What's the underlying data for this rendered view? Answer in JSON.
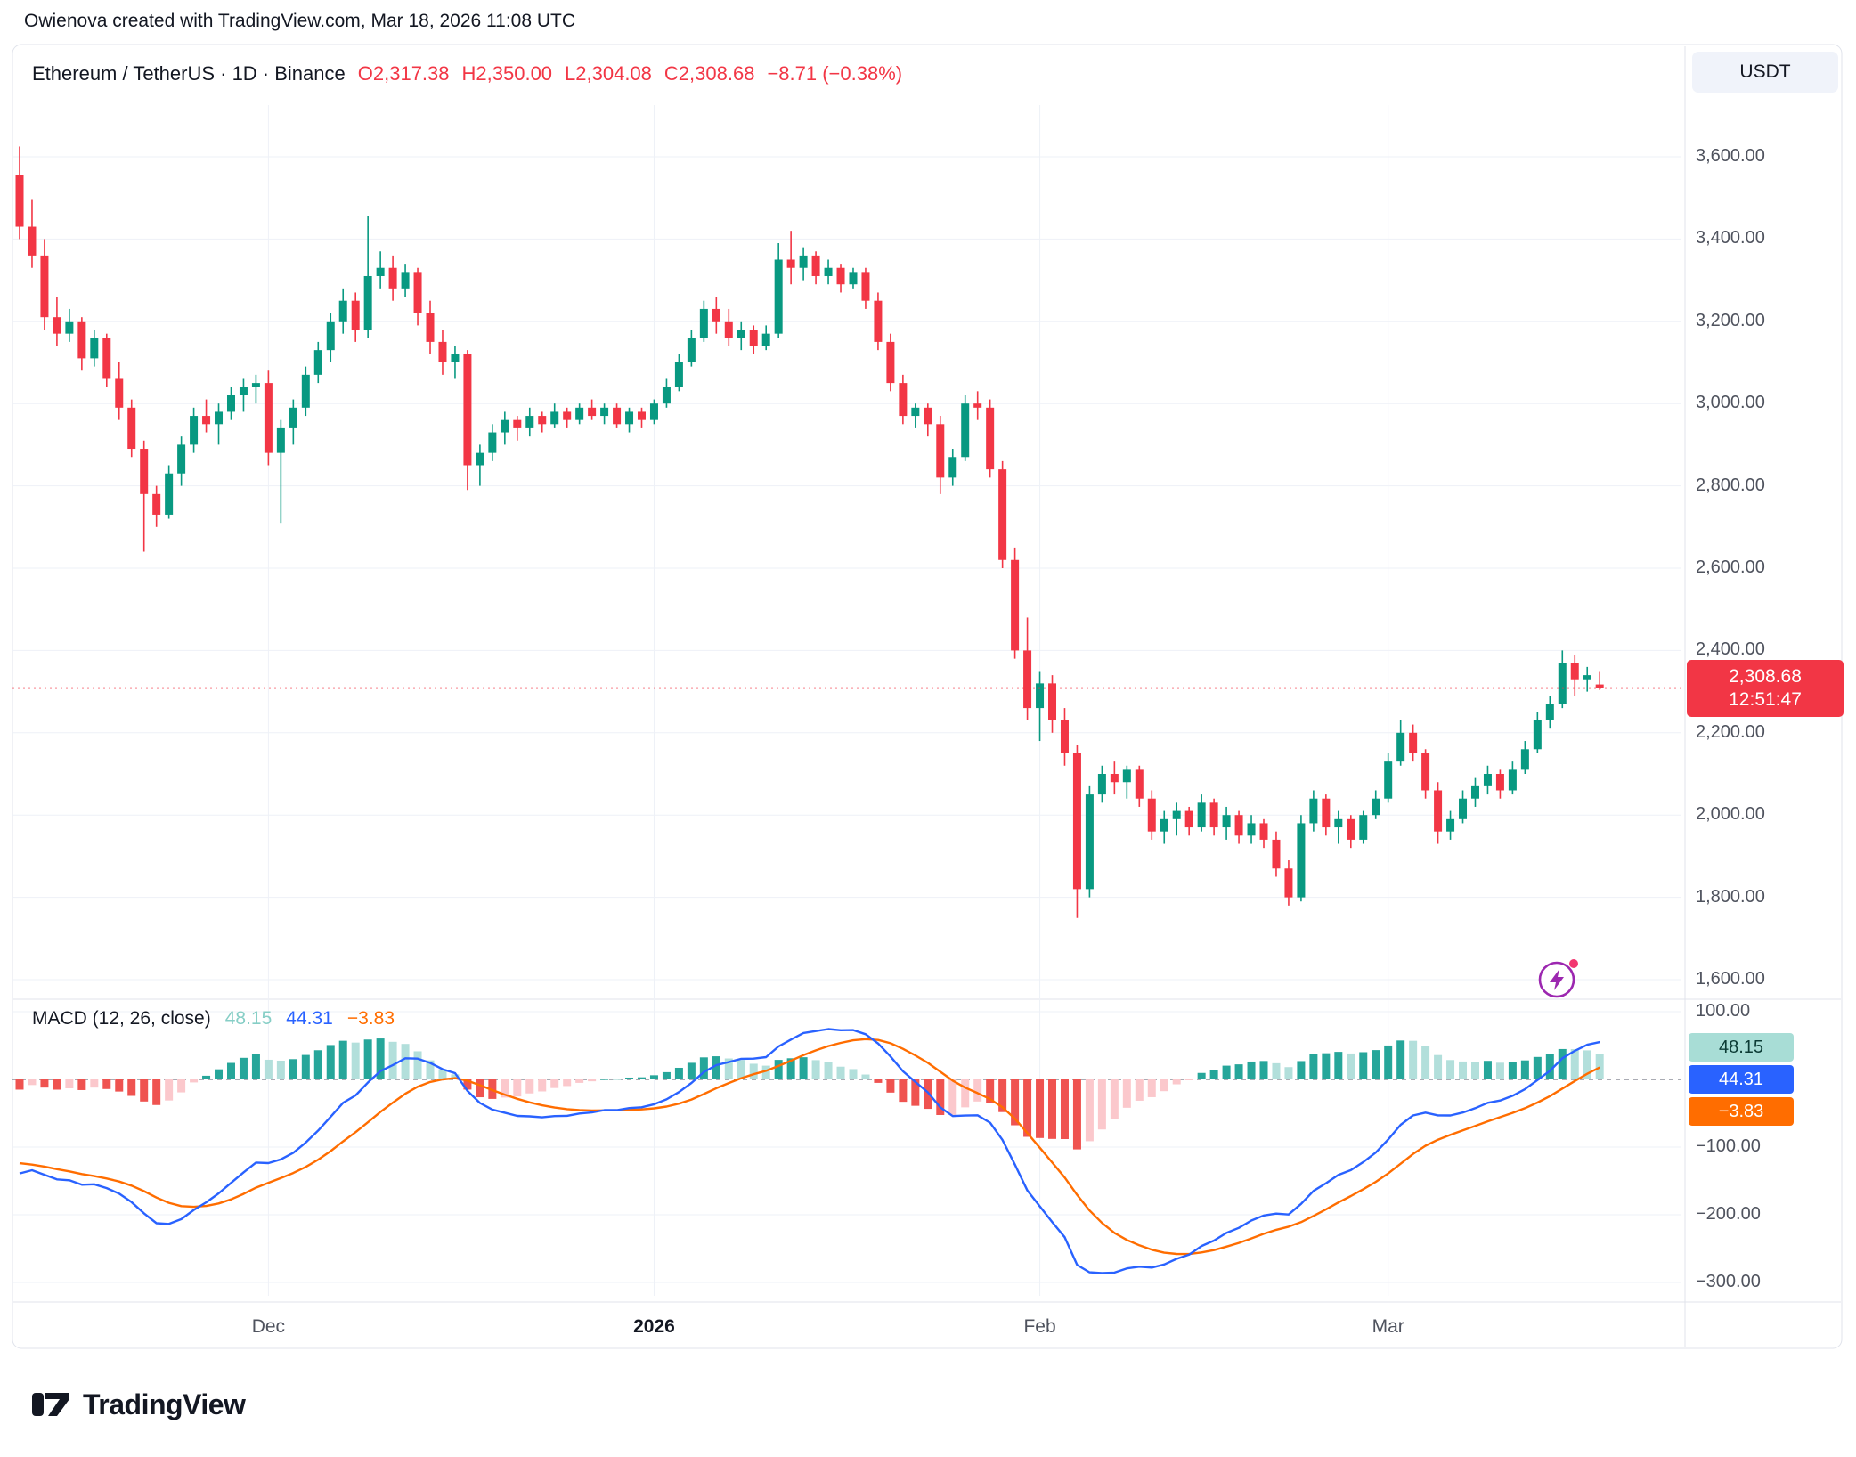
{
  "attribution": "Owienova created with TradingView.com, Mar 18, 2026 11:08 UTC",
  "header": {
    "instrument": "Ethereum / TetherUS · 1D · Binance",
    "o": "O2,317.38",
    "h": "H2,350.00",
    "l": "L2,304.08",
    "c": "C2,308.68",
    "change": "−8.71 (−0.38%)"
  },
  "price_scale": {
    "currency_button": "USDT",
    "labels": [
      "3,600.00",
      "3,400.00",
      "3,200.00",
      "3,000.00",
      "2,800.00",
      "2,600.00",
      "2,400.00",
      "2,200.00",
      "2,000.00",
      "1,800.00",
      "1,600.00"
    ],
    "current_price": {
      "value": "2,308.68",
      "countdown": "12:51:47"
    }
  },
  "macd_panel": {
    "title": "MACD (12, 26, close)",
    "hist_value": "48.15",
    "macd_value": "44.31",
    "signal_value": "−3.83",
    "axis_labels": [
      "100.00",
      "−100.00",
      "−200.00",
      "−300.00"
    ]
  },
  "footer": {
    "logo_text": "TradingView"
  },
  "colors": {
    "up": "#089981",
    "down": "#f23645",
    "macd_line": "#2962ff",
    "signal_line": "#ff6d00",
    "grow_above": "#26a69a",
    "fall_above": "#b2dfdb",
    "grow_below": "#fbc8cc",
    "fall_below": "#ef5350",
    "grid": "#eef1f7",
    "separator": "#e0e3eb",
    "zero_line": "#787b86",
    "price_line": "#f23645"
  },
  "chart_data": {
    "type": "candlestick",
    "title": "Ethereum / TetherUS, 1D, Binance",
    "last_ohlc": {
      "open": 2317.38,
      "high": 2350.0,
      "low": 2304.08,
      "close": 2308.68,
      "change": -8.71,
      "change_pct": -0.38
    },
    "current_price": 2308.68,
    "price_axis_ticks": [
      3600,
      3400,
      3200,
      3000,
      2800,
      2600,
      2400,
      2200,
      2000,
      1800,
      1600
    ],
    "ylim": [
      1560,
      3700
    ],
    "time_ticks": [
      {
        "label": "Dec",
        "index": 20,
        "bold": false
      },
      {
        "label": "2026",
        "index": 51,
        "bold": true
      },
      {
        "label": "Feb",
        "index": 82,
        "bold": false
      },
      {
        "label": "Mar",
        "index": 110,
        "bold": false
      }
    ],
    "candles": [
      [
        3555,
        3625,
        3400,
        3430
      ],
      [
        3430,
        3495,
        3330,
        3360
      ],
      [
        3360,
        3400,
        3180,
        3210
      ],
      [
        3210,
        3260,
        3140,
        3170
      ],
      [
        3170,
        3230,
        3150,
        3200
      ],
      [
        3200,
        3210,
        3080,
        3110
      ],
      [
        3110,
        3180,
        3090,
        3160
      ],
      [
        3160,
        3170,
        3040,
        3060
      ],
      [
        3060,
        3100,
        2960,
        2990
      ],
      [
        2990,
        3010,
        2870,
        2890
      ],
      [
        2890,
        2910,
        2640,
        2780
      ],
      [
        2780,
        2800,
        2700,
        2730
      ],
      [
        2730,
        2850,
        2720,
        2830
      ],
      [
        2830,
        2920,
        2800,
        2900
      ],
      [
        2900,
        2990,
        2880,
        2970
      ],
      [
        2970,
        3010,
        2930,
        2950
      ],
      [
        2950,
        3000,
        2900,
        2980
      ],
      [
        2980,
        3040,
        2960,
        3020
      ],
      [
        3020,
        3060,
        2980,
        3040
      ],
      [
        3040,
        3070,
        3000,
        3050
      ],
      [
        3050,
        3080,
        2850,
        2880
      ],
      [
        2880,
        2960,
        2710,
        2940
      ],
      [
        2940,
        3010,
        2900,
        2990
      ],
      [
        2990,
        3090,
        2970,
        3070
      ],
      [
        3070,
        3150,
        3050,
        3130
      ],
      [
        3130,
        3220,
        3100,
        3200
      ],
      [
        3200,
        3280,
        3170,
        3250
      ],
      [
        3250,
        3270,
        3150,
        3180
      ],
      [
        3180,
        3455,
        3160,
        3310
      ],
      [
        3310,
        3370,
        3280,
        3330
      ],
      [
        3330,
        3360,
        3250,
        3280
      ],
      [
        3280,
        3340,
        3260,
        3320
      ],
      [
        3320,
        3330,
        3190,
        3220
      ],
      [
        3220,
        3250,
        3120,
        3150
      ],
      [
        3150,
        3180,
        3070,
        3100
      ],
      [
        3100,
        3140,
        3060,
        3120
      ],
      [
        3120,
        3130,
        2790,
        2850
      ],
      [
        2850,
        2900,
        2800,
        2880
      ],
      [
        2880,
        2950,
        2860,
        2930
      ],
      [
        2930,
        2980,
        2900,
        2960
      ],
      [
        2960,
        2970,
        2910,
        2940
      ],
      [
        2940,
        2990,
        2920,
        2970
      ],
      [
        2970,
        2980,
        2930,
        2950
      ],
      [
        2950,
        3000,
        2940,
        2980
      ],
      [
        2980,
        2990,
        2940,
        2960
      ],
      [
        2960,
        3000,
        2950,
        2990
      ],
      [
        2990,
        3010,
        2960,
        2970
      ],
      [
        2970,
        3000,
        2950,
        2990
      ],
      [
        2990,
        3000,
        2940,
        2950
      ],
      [
        2950,
        2990,
        2930,
        2980
      ],
      [
        2980,
        2990,
        2940,
        2960
      ],
      [
        2960,
        3010,
        2950,
        3000
      ],
      [
        3000,
        3060,
        2990,
        3040
      ],
      [
        3040,
        3120,
        3030,
        3100
      ],
      [
        3100,
        3180,
        3090,
        3160
      ],
      [
        3160,
        3250,
        3150,
        3230
      ],
      [
        3230,
        3260,
        3170,
        3200
      ],
      [
        3200,
        3230,
        3140,
        3160
      ],
      [
        3160,
        3200,
        3130,
        3180
      ],
      [
        3180,
        3190,
        3120,
        3140
      ],
      [
        3140,
        3190,
        3130,
        3170
      ],
      [
        3170,
        3390,
        3160,
        3350
      ],
      [
        3350,
        3420,
        3290,
        3330
      ],
      [
        3330,
        3380,
        3300,
        3360
      ],
      [
        3360,
        3370,
        3290,
        3310
      ],
      [
        3310,
        3350,
        3290,
        3330
      ],
      [
        3330,
        3340,
        3270,
        3290
      ],
      [
        3290,
        3330,
        3280,
        3320
      ],
      [
        3320,
        3330,
        3230,
        3250
      ],
      [
        3250,
        3270,
        3130,
        3150
      ],
      [
        3150,
        3170,
        3030,
        3050
      ],
      [
        3050,
        3070,
        2950,
        2970
      ],
      [
        2970,
        3000,
        2940,
        2990
      ],
      [
        2990,
        3000,
        2920,
        2950
      ],
      [
        2950,
        2970,
        2780,
        2820
      ],
      [
        2820,
        2890,
        2800,
        2870
      ],
      [
        2870,
        3020,
        2860,
        3000
      ],
      [
        3000,
        3030,
        2960,
        2990
      ],
      [
        2990,
        3010,
        2820,
        2840
      ],
      [
        2840,
        2860,
        2600,
        2620
      ],
      [
        2620,
        2650,
        2380,
        2400
      ],
      [
        2400,
        2480,
        2230,
        2260
      ],
      [
        2260,
        2350,
        2180,
        2320
      ],
      [
        2320,
        2340,
        2200,
        2230
      ],
      [
        2230,
        2260,
        2120,
        2150
      ],
      [
        2150,
        2170,
        1750,
        1820
      ],
      [
        1820,
        2070,
        1800,
        2050
      ],
      [
        2050,
        2120,
        2030,
        2100
      ],
      [
        2100,
        2130,
        2050,
        2080
      ],
      [
        2080,
        2120,
        2040,
        2110
      ],
      [
        2110,
        2120,
        2020,
        2040
      ],
      [
        2040,
        2060,
        1940,
        1960
      ],
      [
        1960,
        2010,
        1930,
        1990
      ],
      [
        1990,
        2030,
        1950,
        2010
      ],
      [
        2010,
        2020,
        1950,
        1970
      ],
      [
        1970,
        2050,
        1960,
        2030
      ],
      [
        2030,
        2040,
        1950,
        1970
      ],
      [
        1970,
        2020,
        1940,
        2000
      ],
      [
        2000,
        2010,
        1930,
        1950
      ],
      [
        1950,
        2000,
        1930,
        1980
      ],
      [
        1980,
        1990,
        1920,
        1940
      ],
      [
        1940,
        1960,
        1850,
        1870
      ],
      [
        1870,
        1890,
        1780,
        1800
      ],
      [
        1800,
        2000,
        1790,
        1980
      ],
      [
        1980,
        2060,
        1960,
        2040
      ],
      [
        2040,
        2050,
        1950,
        1970
      ],
      [
        1970,
        2010,
        1930,
        1990
      ],
      [
        1990,
        2000,
        1920,
        1940
      ],
      [
        1940,
        2010,
        1930,
        2000
      ],
      [
        2000,
        2060,
        1990,
        2040
      ],
      [
        2040,
        2150,
        2030,
        2130
      ],
      [
        2130,
        2230,
        2120,
        2200
      ],
      [
        2200,
        2220,
        2130,
        2150
      ],
      [
        2150,
        2160,
        2040,
        2060
      ],
      [
        2060,
        2080,
        1930,
        1960
      ],
      [
        1960,
        2010,
        1940,
        1990
      ],
      [
        1990,
        2060,
        1980,
        2040
      ],
      [
        2040,
        2090,
        2020,
        2070
      ],
      [
        2070,
        2120,
        2050,
        2100
      ],
      [
        2100,
        2110,
        2040,
        2060
      ],
      [
        2060,
        2130,
        2050,
        2110
      ],
      [
        2110,
        2180,
        2100,
        2160
      ],
      [
        2160,
        2250,
        2150,
        2230
      ],
      [
        2230,
        2290,
        2210,
        2270
      ],
      [
        2270,
        2400,
        2260,
        2370
      ],
      [
        2370,
        2390,
        2290,
        2330
      ],
      [
        2330,
        2360,
        2300,
        2340
      ],
      [
        2317.38,
        2350,
        2304.08,
        2308.68
      ]
    ],
    "macd": {
      "params": [
        12,
        26,
        9
      ],
      "visible_start": {
        "macd": -150,
        "signal": -120
      },
      "last": {
        "hist": 48.15,
        "macd": 44.31,
        "signal": -3.83
      },
      "axis_ticks": [
        100,
        0,
        -100,
        -200,
        -300
      ],
      "ylim": [
        -310,
        110
      ]
    }
  }
}
